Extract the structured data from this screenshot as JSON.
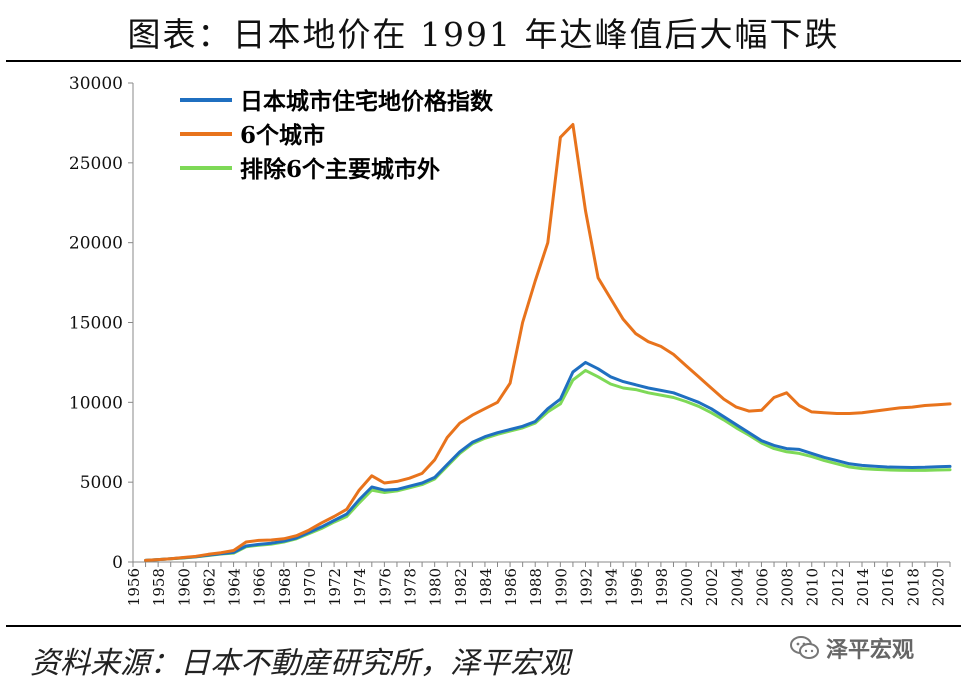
{
  "page_title": "图表：日本地价在 1991 年达峰值后大幅下跌",
  "source_note": "资料来源：日本不動産研究所，泽平宏观",
  "watermark": {
    "icon": "wechat-icon",
    "text": "泽平宏观"
  },
  "chart_data": {
    "type": "line",
    "title": "图表：日本地价在 1991 年达峰值后大幅下跌",
    "xlabel": "",
    "ylabel": "",
    "xlim": [
      1956,
      2021
    ],
    "ylim": [
      0,
      30000
    ],
    "y_ticks": [
      0,
      5000,
      10000,
      15000,
      20000,
      25000,
      30000
    ],
    "x_ticks": [
      1956,
      1958,
      1960,
      1962,
      1964,
      1966,
      1968,
      1970,
      1972,
      1974,
      1976,
      1978,
      1980,
      1982,
      1984,
      1986,
      1988,
      1990,
      1992,
      1994,
      1996,
      1998,
      2000,
      2002,
      2004,
      2006,
      2008,
      2010,
      2012,
      2014,
      2016,
      2018,
      2020
    ],
    "grid": false,
    "legend_position": "top-left",
    "x": [
      1957,
      1958,
      1959,
      1960,
      1961,
      1962,
      1963,
      1964,
      1965,
      1966,
      1967,
      1968,
      1969,
      1970,
      1971,
      1972,
      1973,
      1974,
      1975,
      1976,
      1977,
      1978,
      1979,
      1980,
      1981,
      1982,
      1983,
      1984,
      1985,
      1986,
      1987,
      1988,
      1989,
      1990,
      1991,
      1992,
      1993,
      1994,
      1995,
      1996,
      1997,
      1998,
      1999,
      2000,
      2001,
      2002,
      2003,
      2004,
      2005,
      2006,
      2007,
      2008,
      2009,
      2010,
      2011,
      2012,
      2013,
      2014,
      2015,
      2016,
      2017,
      2018,
      2019,
      2020,
      2021
    ],
    "series": [
      {
        "name": "日本城市住宅地价格指数",
        "color": "#1f6fc0",
        "values": [
          100,
          150,
          200,
          260,
          330,
          430,
          520,
          600,
          1000,
          1100,
          1180,
          1300,
          1500,
          1850,
          2200,
          2600,
          3000,
          3900,
          4700,
          4500,
          4550,
          4750,
          4950,
          5300,
          6100,
          6900,
          7500,
          7850,
          8100,
          8300,
          8500,
          8800,
          9600,
          10200,
          11900,
          12500,
          12100,
          11600,
          11300,
          11100,
          10900,
          10750,
          10600,
          10300,
          10000,
          9600,
          9100,
          8600,
          8100,
          7600,
          7300,
          7100,
          7050,
          6800,
          6550,
          6350,
          6150,
          6050,
          6000,
          5950,
          5930,
          5920,
          5930,
          5960,
          5990
        ]
      },
      {
        "name": "6个城市",
        "color": "#e8731c",
        "values": [
          100,
          150,
          200,
          280,
          350,
          480,
          580,
          720,
          1250,
          1350,
          1380,
          1450,
          1650,
          2000,
          2450,
          2850,
          3300,
          4500,
          5400,
          4950,
          5050,
          5250,
          5550,
          6400,
          7800,
          8700,
          9200,
          9600,
          10000,
          11200,
          15000,
          17600,
          20000,
          26600,
          27400,
          22000,
          17800,
          16500,
          15200,
          14300,
          13800,
          13500,
          13000,
          12300,
          11600,
          10900,
          10200,
          9700,
          9450,
          9500,
          10300,
          10600,
          9800,
          9400,
          9350,
          9300,
          9300,
          9350,
          9450,
          9550,
          9650,
          9700,
          9800,
          9850,
          9900
        ]
      },
      {
        "name": "排除6个主要城市外",
        "color": "#7ed957",
        "values": [
          100,
          150,
          200,
          250,
          320,
          410,
          500,
          560,
          950,
          1050,
          1120,
          1250,
          1450,
          1780,
          2100,
          2500,
          2850,
          3700,
          4500,
          4350,
          4450,
          4650,
          4850,
          5200,
          6000,
          6800,
          7400,
          7750,
          8000,
          8200,
          8400,
          8700,
          9400,
          9900,
          11400,
          12000,
          11600,
          11150,
          10900,
          10800,
          10600,
          10450,
          10300,
          10050,
          9750,
          9350,
          8900,
          8400,
          7950,
          7450,
          7100,
          6900,
          6800,
          6600,
          6350,
          6150,
          5950,
          5850,
          5800,
          5770,
          5750,
          5740,
          5740,
          5760,
          5780
        ]
      }
    ]
  }
}
